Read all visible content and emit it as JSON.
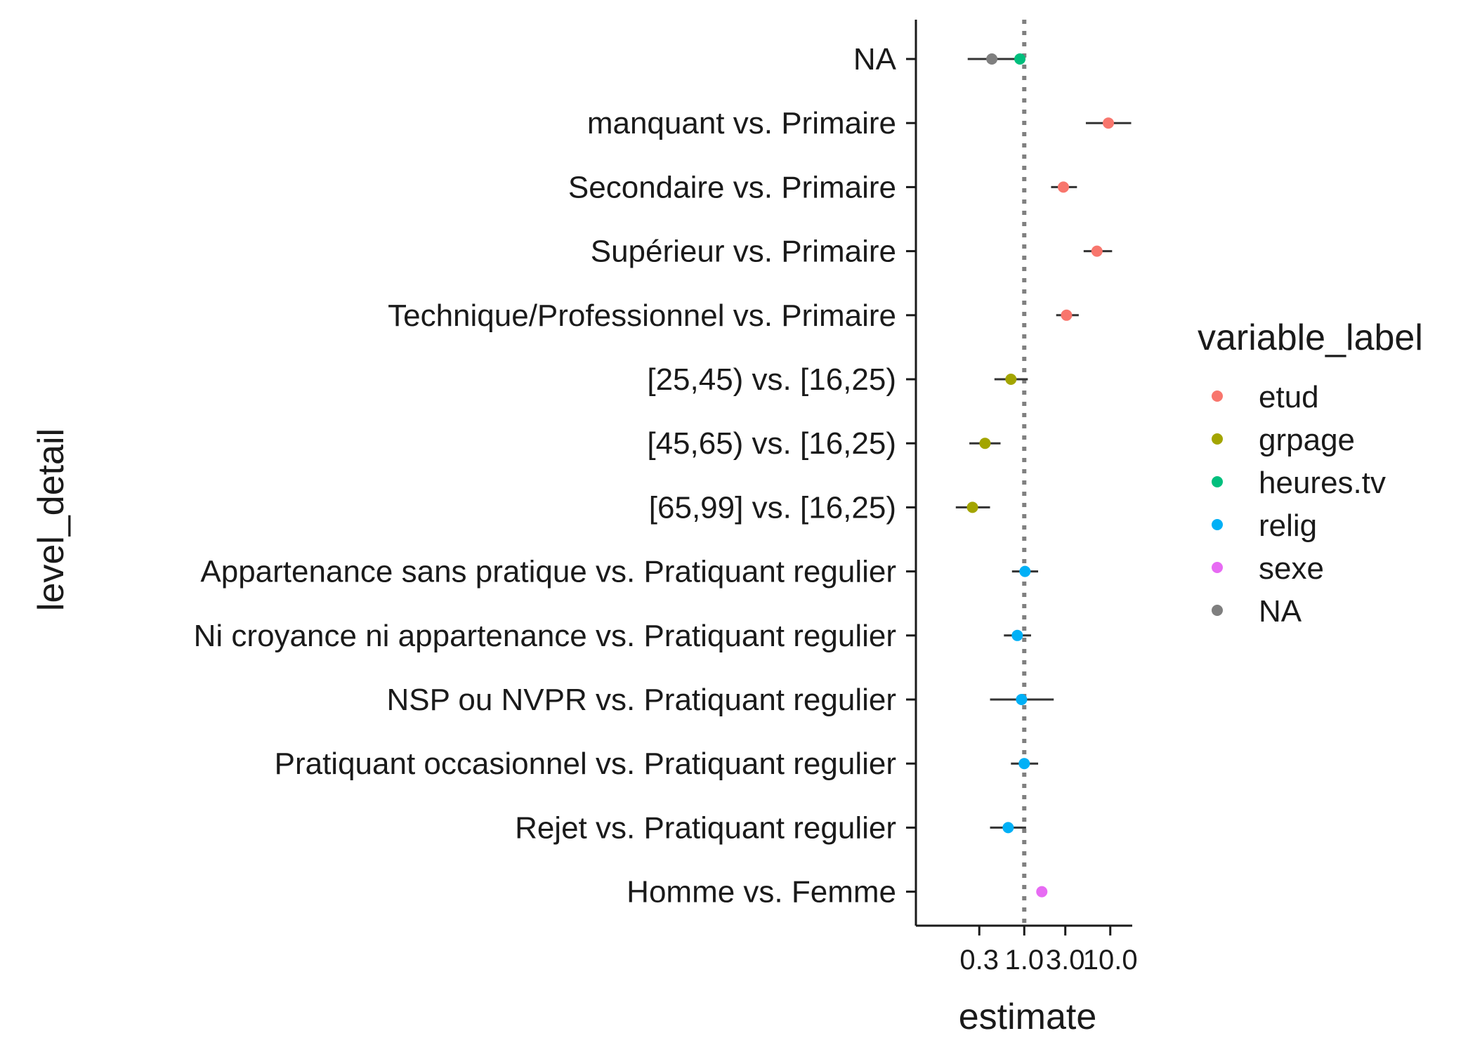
{
  "chart_data": {
    "type": "scatter",
    "subtype": "forest-plot",
    "xlabel": "estimate",
    "ylabel": "level_detail",
    "x_scale": "log10",
    "xlim": [
      0.055,
      18
    ],
    "x_ticks": [
      0.3,
      1.0,
      3.0,
      10.0
    ],
    "x_tick_labels": [
      "0.3",
      "1.0",
      "3.0",
      "10.0"
    ],
    "reference_line": {
      "x": 1.0,
      "style": "dotted"
    },
    "legend": {
      "title": "variable_label",
      "placement": "right",
      "entries": [
        {
          "label": "etud",
          "color": "#F8766D"
        },
        {
          "label": "grpage",
          "color": "#A3A500"
        },
        {
          "label": "heures.tv",
          "color": "#00BF7D"
        },
        {
          "label": "relig",
          "color": "#00B0F6"
        },
        {
          "label": "sexe",
          "color": "#E76BF3"
        },
        {
          "label": "NA",
          "color": "#7F7F7F"
        }
      ]
    },
    "categories": [
      "NA",
      "manquant vs. Primaire",
      "Secondaire vs. Primaire",
      "Supérieur vs. Primaire",
      "Technique/Professionnel vs. Primaire",
      "[25,45) vs. [16,25)",
      "[45,65) vs. [16,25)",
      "[65,99] vs. [16,25)",
      "Appartenance sans pratique vs. Pratiquant regulier",
      "Ni croyance ni appartenance vs. Pratiquant regulier",
      "NSP ou NVPR vs. Pratiquant regulier",
      "Pratiquant occasionnel vs. Pratiquant regulier",
      "Rejet vs. Pratiquant regulier",
      "Homme vs. Femme"
    ],
    "points": [
      {
        "category": "NA",
        "variable": "NA",
        "estimate": 0.42,
        "low": 0.22,
        "high": 0.78
      },
      {
        "category": "NA",
        "variable": "heures.tv",
        "estimate": 0.89,
        "low": 0.85,
        "high": 0.93
      },
      {
        "category": "manquant vs. Primaire",
        "variable": "etud",
        "estimate": 9.5,
        "low": 5.2,
        "high": 17.5
      },
      {
        "category": "Secondaire vs. Primaire",
        "variable": "etud",
        "estimate": 2.85,
        "low": 2.05,
        "high": 4.1
      },
      {
        "category": "Supérieur vs. Primaire",
        "variable": "etud",
        "estimate": 7.0,
        "low": 4.9,
        "high": 10.5
      },
      {
        "category": "Technique/Professionnel vs. Primaire",
        "variable": "etud",
        "estimate": 3.1,
        "low": 2.35,
        "high": 4.3
      },
      {
        "category": "[25,45) vs. [16,25)",
        "variable": "grpage",
        "estimate": 0.7,
        "low": 0.45,
        "high": 1.1
      },
      {
        "category": "[45,65) vs. [16,25)",
        "variable": "grpage",
        "estimate": 0.35,
        "low": 0.23,
        "high": 0.53
      },
      {
        "category": "[65,99] vs. [16,25)",
        "variable": "grpage",
        "estimate": 0.25,
        "low": 0.16,
        "high": 0.4
      },
      {
        "category": "Appartenance sans pratique vs. Pratiquant regulier",
        "variable": "relig",
        "estimate": 1.02,
        "low": 0.72,
        "high": 1.45
      },
      {
        "category": "Ni croyance ni appartenance vs. Pratiquant regulier",
        "variable": "relig",
        "estimate": 0.83,
        "low": 0.58,
        "high": 1.2
      },
      {
        "category": "NSP ou NVPR vs. Pratiquant regulier",
        "variable": "relig",
        "estimate": 0.93,
        "low": 0.4,
        "high": 2.2
      },
      {
        "category": "Pratiquant occasionnel vs. Pratiquant regulier",
        "variable": "relig",
        "estimate": 1.0,
        "low": 0.7,
        "high": 1.45
      },
      {
        "category": "Rejet vs. Pratiquant regulier",
        "variable": "relig",
        "estimate": 0.65,
        "low": 0.4,
        "high": 1.05
      },
      {
        "category": "Homme vs. Femme",
        "variable": "sexe",
        "estimate": 1.6,
        "low": 1.4,
        "high": 1.85
      }
    ]
  }
}
